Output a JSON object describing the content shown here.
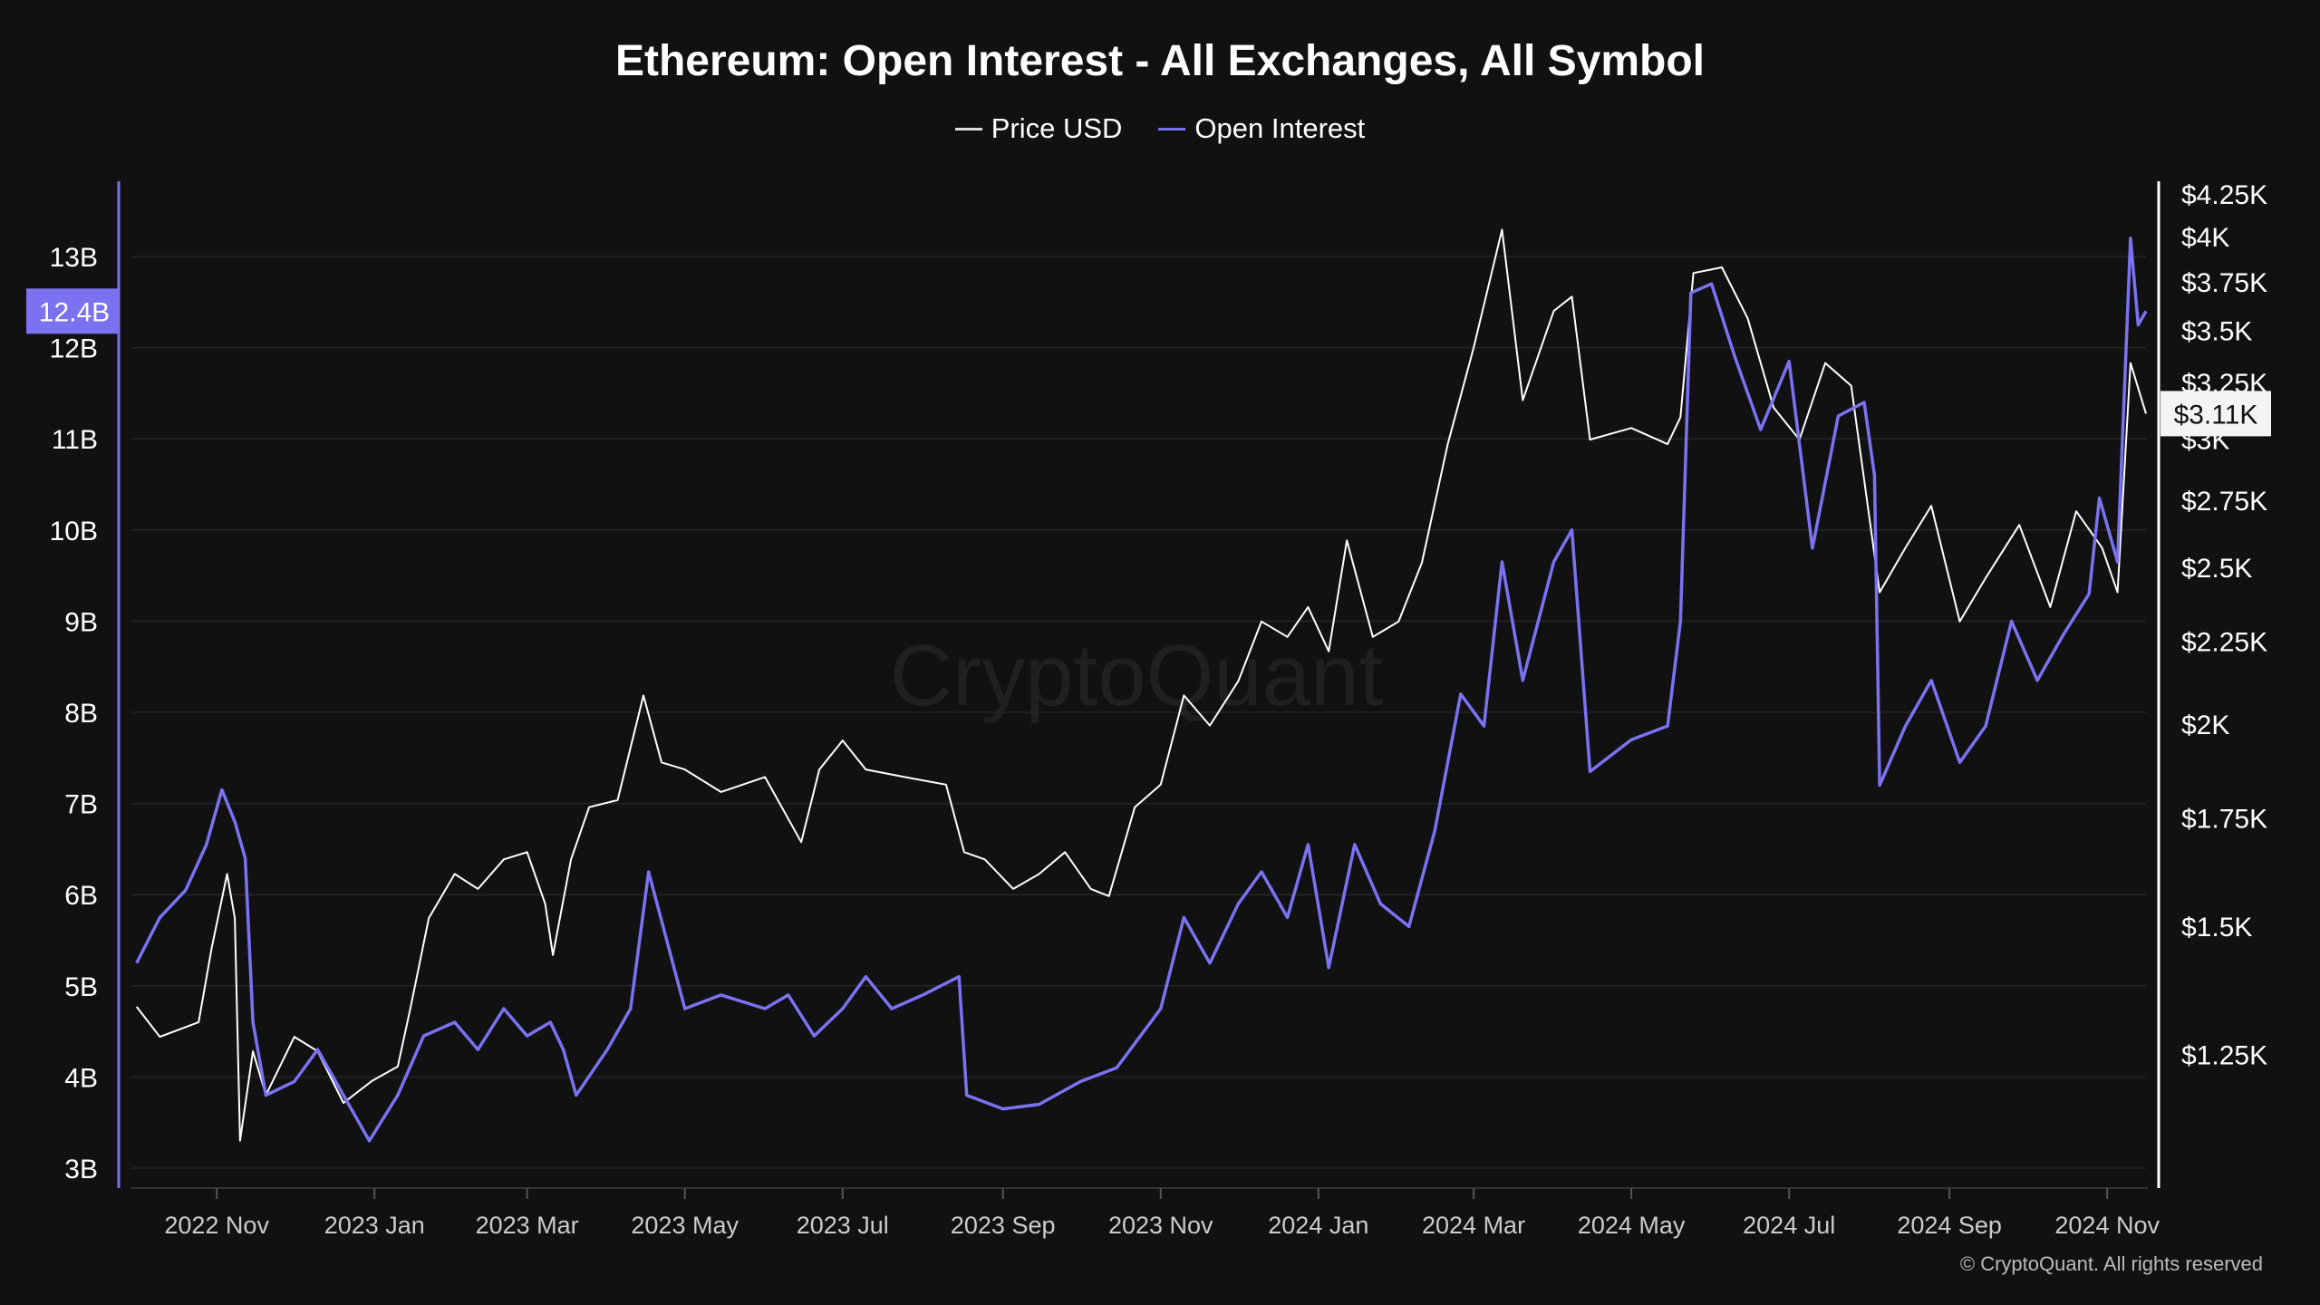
{
  "colors": {
    "background": "#111112",
    "price": "#ffffff",
    "open_interest": "#7b72f2",
    "grid": "#262628"
  },
  "watermark": "CryptoQuant",
  "copyright": "© CryptoQuant. All rights reserved",
  "chart_data": {
    "type": "line",
    "title": "Ethereum: Open Interest - All Exchanges, All Symbol",
    "legend": [
      "Price USD",
      "Open Interest"
    ],
    "legend_position": "top-center",
    "grid": true,
    "xlim": [
      "2022-09-29",
      "2024-11-16"
    ],
    "x_ticks": [
      "2022 Nov",
      "2023 Jan",
      "2023 Mar",
      "2023 May",
      "2023 Jul",
      "2023 Sep",
      "2023 Nov",
      "2024 Jan",
      "2024 Mar",
      "2024 May",
      "2024 Jul",
      "2024 Sep",
      "2024 Nov"
    ],
    "x_tick_dates": [
      "2022-11-01",
      "2023-01-01",
      "2023-03-01",
      "2023-05-01",
      "2023-07-01",
      "2023-09-01",
      "2023-11-01",
      "2024-01-01",
      "2024-03-01",
      "2024-05-01",
      "2024-07-01",
      "2024-09-01",
      "2024-11-01"
    ],
    "y_left": {
      "unit": "USD (billions)",
      "scale": "linear",
      "ylim": [
        2.8,
        14.8
      ],
      "ticks": [
        3,
        4,
        5,
        6,
        7,
        8,
        9,
        10,
        11,
        12,
        13
      ],
      "tick_labels": [
        "3B",
        "4B",
        "5B",
        "6B",
        "7B",
        "8B",
        "9B",
        "10B",
        "11B",
        "12B",
        "13B"
      ],
      "current_value": 12.4,
      "current_label": "12.4B"
    },
    "y_right": {
      "unit": "USD",
      "scale": "log",
      "ticks": [
        1250,
        1500,
        1750,
        2000,
        2250,
        2500,
        2750,
        3000,
        3250,
        3500,
        3750,
        4000,
        4250
      ],
      "tick_labels": [
        "$1.25K",
        "$1.5K",
        "$1.75K",
        "$2K",
        "$2.25K",
        "$2.5K",
        "$2.75K",
        "$3K",
        "$3.25K",
        "$3.5K",
        "$3.75K",
        "$4K",
        "$4.25K"
      ],
      "current_value": 3110,
      "current_label": "$3.11K"
    },
    "series": [
      {
        "name": "Price USD",
        "axis": "right",
        "points": [
          [
            "2022-10-01",
            1338
          ],
          [
            "2022-10-10",
            1282
          ],
          [
            "2022-10-25",
            1309
          ],
          [
            "2022-10-30",
            1454
          ],
          [
            "2022-11-05",
            1616
          ],
          [
            "2022-11-08",
            1518
          ],
          [
            "2022-11-10",
            1106
          ],
          [
            "2022-11-15",
            1256
          ],
          [
            "2022-11-20",
            1180
          ],
          [
            "2022-12-01",
            1282
          ],
          [
            "2022-12-10",
            1256
          ],
          [
            "2022-12-20",
            1167
          ],
          [
            "2022-12-31",
            1204
          ],
          [
            "2023-01-10",
            1229
          ],
          [
            "2023-01-15",
            1338
          ],
          [
            "2023-01-22",
            1518
          ],
          [
            "2023-02-01",
            1616
          ],
          [
            "2023-02-10",
            1582
          ],
          [
            "2023-02-20",
            1650
          ],
          [
            "2023-03-01",
            1667
          ],
          [
            "2023-03-08",
            1549
          ],
          [
            "2023-03-11",
            1440
          ],
          [
            "2023-03-18",
            1650
          ],
          [
            "2023-03-25",
            1777
          ],
          [
            "2023-04-05",
            1795
          ],
          [
            "2023-04-15",
            2083
          ],
          [
            "2023-04-22",
            1894
          ],
          [
            "2023-05-01",
            1875
          ],
          [
            "2023-05-15",
            1816
          ],
          [
            "2023-06-01",
            1855
          ],
          [
            "2023-06-15",
            1691
          ],
          [
            "2023-06-22",
            1875
          ],
          [
            "2023-07-01",
            1954
          ],
          [
            "2023-07-10",
            1875
          ],
          [
            "2023-07-25",
            1855
          ],
          [
            "2023-08-10",
            1835
          ],
          [
            "2023-08-17",
            1667
          ],
          [
            "2023-08-25",
            1650
          ],
          [
            "2023-09-05",
            1582
          ],
          [
            "2023-09-15",
            1616
          ],
          [
            "2023-09-25",
            1667
          ],
          [
            "2023-10-05",
            1582
          ],
          [
            "2023-10-12",
            1566
          ],
          [
            "2023-10-22",
            1777
          ],
          [
            "2023-11-01",
            1835
          ],
          [
            "2023-11-10",
            2083
          ],
          [
            "2023-11-20",
            1996
          ],
          [
            "2023-12-01",
            2126
          ],
          [
            "2023-12-10",
            2314
          ],
          [
            "2023-12-20",
            2264
          ],
          [
            "2023-12-28",
            2362
          ],
          [
            "2024-01-05",
            2218
          ],
          [
            "2024-01-12",
            2597
          ],
          [
            "2024-01-22",
            2264
          ],
          [
            "2024-02-01",
            2314
          ],
          [
            "2024-02-10",
            2516
          ],
          [
            "2024-02-20",
            2978
          ],
          [
            "2024-03-01",
            3414
          ],
          [
            "2024-03-12",
            4040
          ],
          [
            "2024-03-20",
            3170
          ],
          [
            "2024-04-01",
            3599
          ],
          [
            "2024-04-08",
            3673
          ],
          [
            "2024-04-15",
            2997
          ],
          [
            "2024-05-01",
            3047
          ],
          [
            "2024-05-15",
            2978
          ],
          [
            "2024-05-20",
            3094
          ],
          [
            "2024-05-25",
            3798
          ],
          [
            "2024-06-05",
            3829
          ],
          [
            "2024-06-15",
            3561
          ],
          [
            "2024-06-25",
            3137
          ],
          [
            "2024-07-05",
            2997
          ],
          [
            "2024-07-15",
            3342
          ],
          [
            "2024-07-25",
            3236
          ],
          [
            "2024-08-05",
            2412
          ],
          [
            "2024-08-15",
            2570
          ],
          [
            "2024-08-25",
            2728
          ],
          [
            "2024-09-05",
            2314
          ],
          [
            "2024-09-15",
            2462
          ],
          [
            "2024-09-28",
            2655
          ],
          [
            "2024-10-10",
            2362
          ],
          [
            "2024-10-20",
            2707
          ],
          [
            "2024-10-30",
            2570
          ],
          [
            "2024-11-05",
            2412
          ],
          [
            "2024-11-10",
            3342
          ],
          [
            "2024-11-16",
            3110
          ]
        ]
      },
      {
        "name": "Open Interest",
        "axis": "left",
        "points": [
          [
            "2022-10-01",
            5.25
          ],
          [
            "2022-10-10",
            5.75
          ],
          [
            "2022-10-20",
            6.05
          ],
          [
            "2022-10-28",
            6.55
          ],
          [
            "2022-11-03",
            7.15
          ],
          [
            "2022-11-08",
            6.8
          ],
          [
            "2022-11-12",
            6.4
          ],
          [
            "2022-11-15",
            4.6
          ],
          [
            "2022-11-20",
            3.8
          ],
          [
            "2022-12-01",
            3.95
          ],
          [
            "2022-12-10",
            4.3
          ],
          [
            "2022-12-20",
            3.8
          ],
          [
            "2022-12-30",
            3.3
          ],
          [
            "2023-01-10",
            3.8
          ],
          [
            "2023-01-20",
            4.45
          ],
          [
            "2023-02-01",
            4.6
          ],
          [
            "2023-02-10",
            4.3
          ],
          [
            "2023-02-20",
            4.75
          ],
          [
            "2023-03-01",
            4.45
          ],
          [
            "2023-03-10",
            4.6
          ],
          [
            "2023-03-15",
            4.3
          ],
          [
            "2023-03-20",
            3.8
          ],
          [
            "2023-04-01",
            4.3
          ],
          [
            "2023-04-10",
            4.75
          ],
          [
            "2023-04-17",
            6.25
          ],
          [
            "2023-05-01",
            4.75
          ],
          [
            "2023-05-15",
            4.9
          ],
          [
            "2023-06-01",
            4.75
          ],
          [
            "2023-06-10",
            4.9
          ],
          [
            "2023-06-20",
            4.45
          ],
          [
            "2023-07-01",
            4.75
          ],
          [
            "2023-07-10",
            5.1
          ],
          [
            "2023-07-20",
            4.75
          ],
          [
            "2023-08-01",
            4.9
          ],
          [
            "2023-08-15",
            5.1
          ],
          [
            "2023-08-18",
            3.8
          ],
          [
            "2023-09-01",
            3.65
          ],
          [
            "2023-09-15",
            3.7
          ],
          [
            "2023-10-01",
            3.95
          ],
          [
            "2023-10-15",
            4.1
          ],
          [
            "2023-11-01",
            4.75
          ],
          [
            "2023-11-10",
            5.75
          ],
          [
            "2023-11-20",
            5.25
          ],
          [
            "2023-12-01",
            5.9
          ],
          [
            "2023-12-10",
            6.25
          ],
          [
            "2023-12-20",
            5.75
          ],
          [
            "2023-12-28",
            6.55
          ],
          [
            "2024-01-05",
            5.2
          ],
          [
            "2024-01-15",
            6.55
          ],
          [
            "2024-01-25",
            5.9
          ],
          [
            "2024-02-05",
            5.65
          ],
          [
            "2024-02-15",
            6.7
          ],
          [
            "2024-02-25",
            8.2
          ],
          [
            "2024-03-05",
            7.85
          ],
          [
            "2024-03-12",
            9.65
          ],
          [
            "2024-03-20",
            8.35
          ],
          [
            "2024-04-01",
            9.65
          ],
          [
            "2024-04-08",
            10.0
          ],
          [
            "2024-04-15",
            7.35
          ],
          [
            "2024-05-01",
            7.7
          ],
          [
            "2024-05-15",
            7.85
          ],
          [
            "2024-05-20",
            9.0
          ],
          [
            "2024-05-24",
            12.6
          ],
          [
            "2024-06-01",
            12.7
          ],
          [
            "2024-06-10",
            11.9
          ],
          [
            "2024-06-20",
            11.1
          ],
          [
            "2024-07-01",
            11.85
          ],
          [
            "2024-07-10",
            9.8
          ],
          [
            "2024-07-20",
            11.25
          ],
          [
            "2024-07-30",
            11.4
          ],
          [
            "2024-08-03",
            10.6
          ],
          [
            "2024-08-05",
            7.2
          ],
          [
            "2024-08-15",
            7.85
          ],
          [
            "2024-08-25",
            8.35
          ],
          [
            "2024-09-05",
            7.45
          ],
          [
            "2024-09-15",
            7.85
          ],
          [
            "2024-09-25",
            9.0
          ],
          [
            "2024-10-05",
            8.35
          ],
          [
            "2024-10-15",
            8.85
          ],
          [
            "2024-10-25",
            9.3
          ],
          [
            "2024-10-29",
            10.35
          ],
          [
            "2024-11-05",
            9.65
          ],
          [
            "2024-11-10",
            13.2
          ],
          [
            "2024-11-13",
            12.25
          ],
          [
            "2024-11-16",
            12.4
          ]
        ]
      }
    ]
  }
}
